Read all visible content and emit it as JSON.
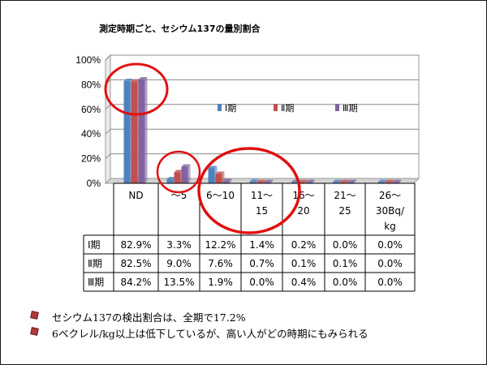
{
  "slide_title": "測定時期ごと、セシウム137の量別割合",
  "chart_data": {
    "type": "bar",
    "title": "測定時期ごと、セシウム137の量別割合",
    "categories": [
      "ND",
      "〜5",
      "6〜10",
      "11〜15",
      "16〜20",
      "21〜25",
      "26〜30Bq/kg"
    ],
    "category_lines": [
      [
        "ND"
      ],
      [
        "〜5"
      ],
      [
        "6〜10"
      ],
      [
        "11〜",
        "15"
      ],
      [
        "16〜",
        "20"
      ],
      [
        "21〜",
        "25"
      ],
      [
        "26〜",
        "30Bq/",
        "kg"
      ]
    ],
    "series": [
      {
        "name": "Ⅰ期",
        "color": "#4f81bd",
        "values": [
          82.9,
          3.3,
          12.2,
          1.4,
          0.2,
          0.0,
          0.0
        ],
        "labels": [
          "82.9%",
          "3.3%",
          "12.2%",
          "1.4%",
          "0.2%",
          "0.0%",
          "0.0%"
        ]
      },
      {
        "name": "Ⅱ期",
        "color": "#c0504d",
        "values": [
          82.5,
          9.0,
          7.6,
          0.7,
          0.1,
          0.1,
          0.0
        ],
        "labels": [
          "82.5%",
          "9.0%",
          "7.6%",
          "0.7%",
          "0.1%",
          "0.1%",
          "0.0%"
        ]
      },
      {
        "name": "Ⅲ期",
        "color": "#8064a2",
        "values": [
          84.2,
          13.5,
          1.9,
          0.0,
          0.4,
          0.0,
          0.0
        ],
        "labels": [
          "84.2%",
          "13.5%",
          "1.9%",
          "0.0%",
          "0.4%",
          "0.0%",
          "0.0%"
        ]
      }
    ],
    "yticks": [
      "0%",
      "20%",
      "40%",
      "60%",
      "80%",
      "100%"
    ],
    "ylim": [
      0,
      100
    ],
    "grid": true,
    "legend": "center-right"
  },
  "bullets": [
    "セシウム137の検出割合は、全期で17.2%",
    "6ベクレル/kg以上は低下しているが、高い人がどの時期にもみられる"
  ],
  "colors": {
    "annotation_circle": "#e01010"
  }
}
